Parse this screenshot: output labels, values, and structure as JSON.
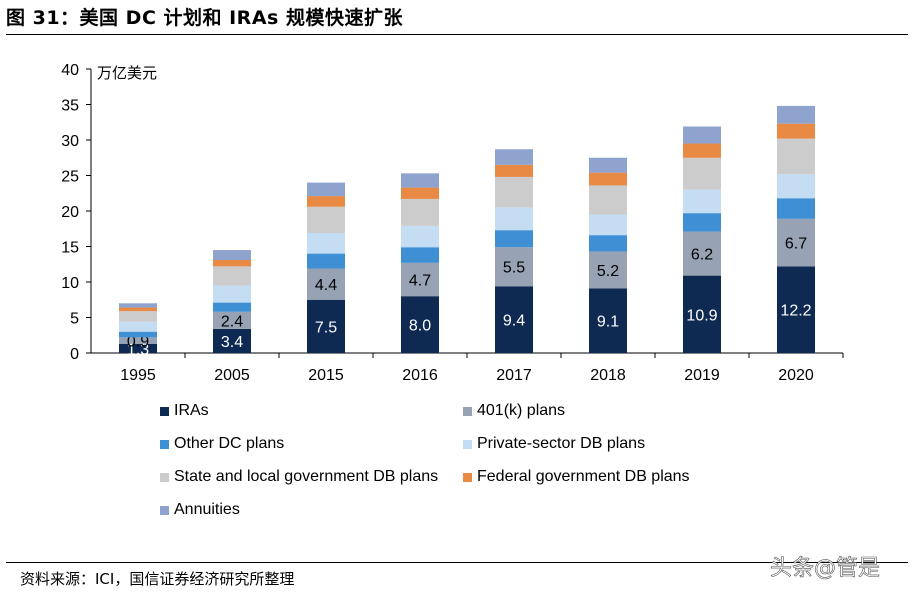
{
  "title": "图 31：美国 DC 计划和 IRAs 规模快速扩张",
  "source": "资料来源：ICI，国信证券经济研究所整理",
  "watermark": "头条@管是",
  "chart_data": {
    "type": "bar",
    "stacked": true,
    "unit_label": "万亿美元",
    "ylim": [
      0,
      40
    ],
    "yticks": [
      0,
      5,
      10,
      15,
      20,
      25,
      30,
      35,
      40
    ],
    "categories": [
      "1995",
      "2005",
      "2015",
      "2016",
      "2017",
      "2018",
      "2019",
      "2020"
    ],
    "series": [
      {
        "name": "IRAs",
        "color": "#0e2a52",
        "values": [
          1.3,
          3.4,
          7.5,
          8.0,
          9.4,
          9.1,
          10.9,
          12.2
        ],
        "label_color": "#ffffff"
      },
      {
        "name": "401(k) plans",
        "color": "#97a3b4",
        "values": [
          0.9,
          2.4,
          4.4,
          4.7,
          5.5,
          5.2,
          6.2,
          6.7
        ],
        "label_color": "#000000"
      },
      {
        "name": "Other DC plans",
        "color": "#3e8fd4",
        "values": [
          0.8,
          1.3,
          2.1,
          2.2,
          2.4,
          2.3,
          2.6,
          2.9
        ]
      },
      {
        "name": "Private-sector DB plans",
        "color": "#c5ddf3",
        "values": [
          1.4,
          2.4,
          2.9,
          3.0,
          3.2,
          2.9,
          3.3,
          3.4
        ]
      },
      {
        "name": "State and local government DB plans",
        "color": "#cccccc",
        "values": [
          1.5,
          2.7,
          3.7,
          3.8,
          4.3,
          4.1,
          4.5,
          5.0
        ]
      },
      {
        "name": "Federal government DB plans",
        "color": "#e88a44",
        "values": [
          0.5,
          0.9,
          1.5,
          1.6,
          1.7,
          1.8,
          2.0,
          2.1
        ]
      },
      {
        "name": "Annuities",
        "color": "#8ea3cd",
        "values": [
          0.6,
          1.4,
          1.9,
          2.0,
          2.2,
          2.1,
          2.4,
          2.5
        ]
      }
    ],
    "data_labels": {
      "IRAs": [
        "1.3",
        "3.4",
        "7.5",
        "8.0",
        "9.4",
        "9.1",
        "10.9",
        "12.2"
      ],
      "401(k) plans": [
        "0.9",
        "2.4",
        "4.4",
        "4.7",
        "5.5",
        "5.2",
        "6.2",
        "6.7"
      ]
    },
    "legend": [
      "IRAs",
      "401(k) plans",
      "Other DC plans",
      "Private-sector DB plans",
      "State and local government DB plans",
      "Federal government DB plans",
      "Annuities"
    ],
    "legend_position": "bottom"
  }
}
